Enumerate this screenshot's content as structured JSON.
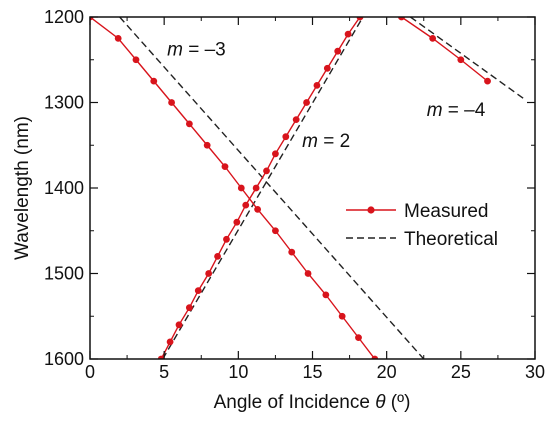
{
  "chart_data": {
    "type": "line",
    "title": "",
    "xlabel": "Angle of Incidence θ (º)",
    "ylabel": "Wavelength (nm)",
    "xlim": [
      0,
      30
    ],
    "ylim": [
      1200,
      1600
    ],
    "y_inverted": true,
    "xticks": [
      0,
      5,
      10,
      15,
      20,
      25,
      30
    ],
    "yticks": [
      1200,
      1300,
      1400,
      1500,
      1600
    ],
    "grid": false,
    "legend": {
      "placement": "center-right",
      "entries": [
        "Measured",
        "Theoretical"
      ]
    },
    "colors": {
      "measured": "#d8141c",
      "theoretical": "#222222",
      "axis": "#111111"
    },
    "annotations": [
      {
        "text": "m = –3",
        "x": 5.2,
        "y": 1245
      },
      {
        "text": "m = 2",
        "x": 14.3,
        "y": 1352
      },
      {
        "text": "m = –4",
        "x": 22.7,
        "y": 1316
      }
    ],
    "series": [
      {
        "name": "Measured",
        "style": "line-marker",
        "segments": [
          {
            "order": "m = –3",
            "x": [
              0,
              1.9,
              3.1,
              4.3,
              5.5,
              6.7,
              7.9,
              9.1,
              10.2,
              11.3,
              12.5,
              13.6,
              14.7,
              15.9,
              17.0,
              18.1,
              19.2,
              20.4,
              21.5
            ],
            "y": [
              1200,
              1225,
              1250,
              1275,
              1300,
              1325,
              1350,
              1375,
              1400,
              1425,
              1450,
              1475,
              1500,
              1525,
              1550,
              1575,
              1600,
              1625,
              1650
            ]
          },
          {
            "order": "m = 2",
            "x": [
              4.8,
              5.4,
              6.0,
              6.7,
              7.3,
              8.0,
              8.6,
              9.2,
              9.9,
              10.5,
              11.2,
              11.9,
              12.5,
              13.2,
              13.9,
              14.6,
              15.3,
              16.0,
              16.7,
              17.4,
              18.2
            ],
            "y": [
              1600,
              1580,
              1560,
              1540,
              1520,
              1500,
              1480,
              1460,
              1440,
              1420,
              1400,
              1380,
              1360,
              1340,
              1320,
              1300,
              1280,
              1260,
              1240,
              1220,
              1200
            ]
          },
          {
            "order": "m = –4",
            "x": [
              21.0,
              23.1,
              25.0,
              26.8
            ],
            "y": [
              1200,
              1225,
              1250,
              1275
            ]
          }
        ]
      },
      {
        "name": "Theoretical",
        "style": "dashed",
        "segments": [
          {
            "order": "m = –3",
            "x": [
              2.0,
              22.5
            ],
            "y": [
              1200,
              1600
            ]
          },
          {
            "order": "m = 2",
            "x": [
              4.9,
              18.4
            ],
            "y": [
              1600,
              1200
            ]
          },
          {
            "order": "m = –4",
            "x": [
              21.6,
              29.2
            ],
            "y": [
              1200,
              1295
            ]
          }
        ]
      }
    ]
  }
}
